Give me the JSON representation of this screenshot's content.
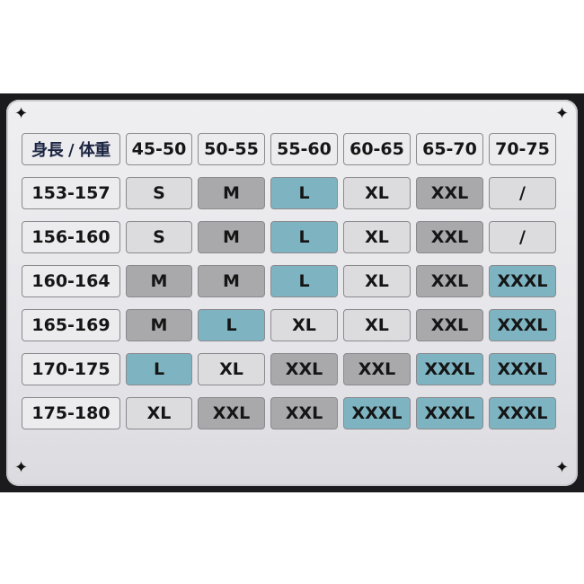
{
  "table": {
    "corner_label": "身長 / 体重",
    "weights": [
      "45-50",
      "50-55",
      "55-60",
      "60-65",
      "65-70",
      "70-75"
    ],
    "rows": [
      {
        "height": "153-157",
        "sizes": [
          "S",
          "M",
          "L",
          "XL",
          "XXL",
          "/"
        ],
        "tones": [
          "l",
          "g",
          "t",
          "l",
          "g",
          "l"
        ]
      },
      {
        "height": "156-160",
        "sizes": [
          "S",
          "M",
          "L",
          "XL",
          "XXL",
          "/"
        ],
        "tones": [
          "l",
          "g",
          "t",
          "l",
          "g",
          "l"
        ]
      },
      {
        "height": "160-164",
        "sizes": [
          "M",
          "M",
          "L",
          "XL",
          "XXL",
          "XXXL"
        ],
        "tones": [
          "g",
          "g",
          "t",
          "l",
          "g",
          "t"
        ]
      },
      {
        "height": "165-169",
        "sizes": [
          "M",
          "L",
          "XL",
          "XL",
          "XXL",
          "XXXL"
        ],
        "tones": [
          "g",
          "t",
          "l",
          "l",
          "g",
          "t"
        ]
      },
      {
        "height": "170-175",
        "sizes": [
          "L",
          "XL",
          "XXL",
          "XXL",
          "XXXL",
          "XXXL"
        ],
        "tones": [
          "t",
          "l",
          "g",
          "g",
          "t",
          "t"
        ]
      },
      {
        "height": "175-180",
        "sizes": [
          "XL",
          "XXL",
          "XXL",
          "XXXL",
          "XXXL",
          "XXXL"
        ],
        "tones": [
          "l",
          "g",
          "g",
          "t",
          "t",
          "t"
        ]
      }
    ]
  },
  "colors": {
    "light": "#dcdcde",
    "gray": "#a9a9ab",
    "teal": "#7eb4c2",
    "frame": "#1b1b1d",
    "header_text": "#1a2340"
  },
  "icons": {
    "corner": "four-point-star-icon"
  }
}
